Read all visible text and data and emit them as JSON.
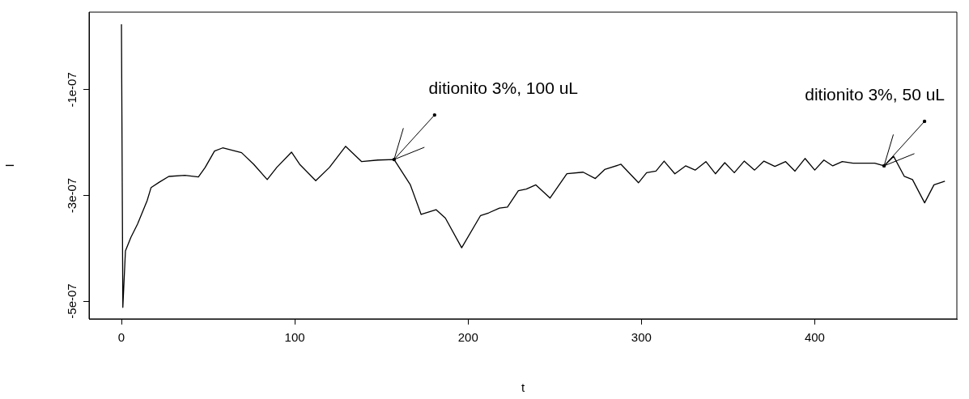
{
  "chart_data": {
    "type": "line",
    "xlabel": "t",
    "ylabel": "I",
    "marker": "none",
    "legend": false,
    "grid": false,
    "xlim": [
      -18.7,
      482
    ],
    "ylim": [
      -5.337e-07,
      4.7e-08
    ],
    "xticks": [
      0,
      100,
      200,
      300,
      400
    ],
    "yticks": [
      {
        "value": -1e-07,
        "label": "-1e-07"
      },
      {
        "value": -3e-07,
        "label": "-3e-07"
      },
      {
        "value": -5e-07,
        "label": "-5e-07"
      }
    ],
    "annotations": [
      {
        "text": "ditionito 3%, 100 uL",
        "x": 157.3,
        "y": -2.32e-07
      },
      {
        "text": "ditionito 3%, 50 uL",
        "x": 440,
        "y": -2.44e-07
      }
    ],
    "series": [
      {
        "color": "#000000",
        "x": [
          0,
          0.8,
          2.3,
          5.5,
          9.3,
          14.8,
          17.1,
          21.8,
          27.3,
          36.6,
          44.4,
          48.3,
          53.7,
          58.4,
          69.3,
          76.3,
          84.1,
          89.6,
          98.1,
          102.8,
          112.1,
          120,
          129.3,
          138.6,
          148,
          157.3,
          166.7,
          172.9,
          181.5,
          186.9,
          196.3,
          207.2,
          211.9,
          218.1,
          222.7,
          229,
          233.6,
          239.1,
          247.3,
          257,
          266.4,
          273.4,
          278.8,
          288.2,
          298.3,
          303,
          308.4,
          313.1,
          319.3,
          325.5,
          331,
          337.2,
          342.7,
          348.1,
          353.6,
          359.3,
          365.3,
          370.7,
          377,
          383.2,
          388.6,
          394.4,
          400,
          405.3,
          410.4,
          415.9,
          422.1,
          434.6,
          440,
          445.5,
          451.7,
          456.4,
          463.4,
          468.8,
          475.1
        ],
        "values": [
          2.4e-08,
          -5.12e-07,
          -4.05e-07,
          -3.79e-07,
          -3.54e-07,
          -3.1e-07,
          -2.85e-07,
          -2.75e-07,
          -2.64e-07,
          -2.62e-07,
          -2.65e-07,
          -2.47e-07,
          -2.16e-07,
          -2.1e-07,
          -2.19e-07,
          -2.41e-07,
          -2.7e-07,
          -2.47e-07,
          -2.18e-07,
          -2.41e-07,
          -2.72e-07,
          -2.47e-07,
          -2.07e-07,
          -2.36e-07,
          -2.33e-07,
          -2.32e-07,
          -2.8e-07,
          -3.36e-07,
          -3.27e-07,
          -3.43e-07,
          -3.99e-07,
          -3.38e-07,
          -3.33e-07,
          -3.24e-07,
          -3.22e-07,
          -2.91e-07,
          -2.88e-07,
          -2.8e-07,
          -3.05e-07,
          -2.59e-07,
          -2.56e-07,
          -2.68e-07,
          -2.51e-07,
          -2.41e-07,
          -2.76e-07,
          -2.57e-07,
          -2.54e-07,
          -2.35e-07,
          -2.59e-07,
          -2.44e-07,
          -2.52e-07,
          -2.36e-07,
          -2.59e-07,
          -2.38e-07,
          -2.57e-07,
          -2.35e-07,
          -2.52e-07,
          -2.35e-07,
          -2.45e-07,
          -2.36e-07,
          -2.54e-07,
          -2.3e-07,
          -2.52e-07,
          -2.33e-07,
          -2.44e-07,
          -2.36e-07,
          -2.39e-07,
          -2.39e-07,
          -2.44e-07,
          -2.26e-07,
          -2.64e-07,
          -2.7e-07,
          -3.14e-07,
          -2.8e-07,
          -2.73e-07
        ]
      }
    ]
  }
}
